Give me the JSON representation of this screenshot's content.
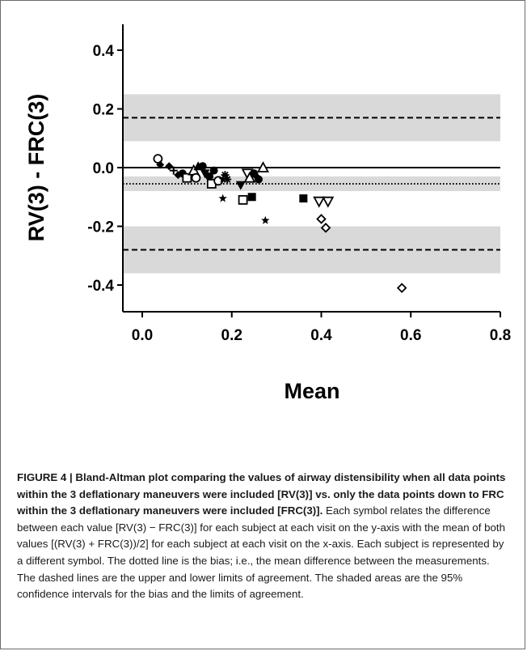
{
  "chart_data": {
    "type": "scatter",
    "title": "",
    "xlabel": "Mean",
    "ylabel": "RV(3) - FRC(3)",
    "xlim": [
      -0.1,
      0.8
    ],
    "ylim": [
      -0.5,
      0.5
    ],
    "x_ticks": [
      0.0,
      0.2,
      0.4,
      0.6,
      0.8
    ],
    "x_tick_labels": [
      "0.0",
      "0.2",
      "0.4",
      "0.6",
      "0.8"
    ],
    "y_ticks": [
      0.4,
      0.2,
      0.0,
      -0.2,
      -0.4
    ],
    "y_tick_labels": [
      "0.4",
      "0.2",
      "0.0",
      "-0.2",
      "-0.4"
    ],
    "zero_line": 0.0,
    "bias": -0.055,
    "bias_ci": [
      -0.08,
      -0.03
    ],
    "upper_limit": 0.17,
    "upper_limit_ci": [
      0.09,
      0.25
    ],
    "lower_limit": -0.28,
    "lower_limit_ci": [
      -0.36,
      -0.2
    ],
    "grid": false,
    "points": [
      {
        "x": 0.035,
        "y": 0.03,
        "marker": "circle-open"
      },
      {
        "x": 0.04,
        "y": 0.01,
        "marker": "diamond-filled"
      },
      {
        "x": 0.06,
        "y": 0.005,
        "marker": "diamond-filled"
      },
      {
        "x": 0.07,
        "y": -0.01,
        "marker": "plus"
      },
      {
        "x": 0.08,
        "y": -0.025,
        "marker": "diamond-filled"
      },
      {
        "x": 0.09,
        "y": -0.02,
        "marker": "circle-filled"
      },
      {
        "x": 0.1,
        "y": -0.035,
        "marker": "square-open"
      },
      {
        "x": 0.115,
        "y": -0.01,
        "marker": "triangle-up-open"
      },
      {
        "x": 0.12,
        "y": -0.035,
        "marker": "circle-open"
      },
      {
        "x": 0.125,
        "y": 0.005,
        "marker": "triangle-up-filled"
      },
      {
        "x": 0.135,
        "y": 0.005,
        "marker": "circle-filled"
      },
      {
        "x": 0.14,
        "y": -0.02,
        "marker": "triangle-down-filled"
      },
      {
        "x": 0.15,
        "y": -0.03,
        "marker": "circle-filled"
      },
      {
        "x": 0.155,
        "y": -0.055,
        "marker": "square-open"
      },
      {
        "x": 0.16,
        "y": -0.01,
        "marker": "circle-filled"
      },
      {
        "x": 0.17,
        "y": -0.045,
        "marker": "circle-open"
      },
      {
        "x": 0.18,
        "y": -0.04,
        "marker": "star-filled"
      },
      {
        "x": 0.185,
        "y": -0.025,
        "marker": "asterisk"
      },
      {
        "x": 0.19,
        "y": -0.04,
        "marker": "asterisk"
      },
      {
        "x": 0.18,
        "y": -0.105,
        "marker": "star-filled"
      },
      {
        "x": 0.22,
        "y": -0.06,
        "marker": "triangle-down-filled"
      },
      {
        "x": 0.225,
        "y": -0.11,
        "marker": "square-open"
      },
      {
        "x": 0.235,
        "y": -0.02,
        "marker": "triangle-down-open"
      },
      {
        "x": 0.24,
        "y": -0.035,
        "marker": "triangle-up-open"
      },
      {
        "x": 0.245,
        "y": -0.1,
        "marker": "square-filled"
      },
      {
        "x": 0.25,
        "y": -0.02,
        "marker": "circle-filled"
      },
      {
        "x": 0.255,
        "y": -0.03,
        "marker": "diamond-filled"
      },
      {
        "x": 0.26,
        "y": -0.04,
        "marker": "circle-filled"
      },
      {
        "x": 0.27,
        "y": 0.0,
        "marker": "triangle-up-open"
      },
      {
        "x": 0.275,
        "y": -0.18,
        "marker": "star-filled"
      },
      {
        "x": 0.36,
        "y": -0.105,
        "marker": "square-filled"
      },
      {
        "x": 0.395,
        "y": -0.115,
        "marker": "triangle-down-open"
      },
      {
        "x": 0.4,
        "y": -0.175,
        "marker": "diamond-open"
      },
      {
        "x": 0.41,
        "y": -0.205,
        "marker": "diamond-open"
      },
      {
        "x": 0.415,
        "y": -0.115,
        "marker": "triangle-down-open"
      },
      {
        "x": 0.58,
        "y": -0.41,
        "marker": "diamond-open"
      }
    ]
  },
  "caption": {
    "bold": "FIGURE 4 | Bland-Altman plot comparing the values of airway distensibility when all data points within the 3 deflationary maneuvers were included [RV(3)] vs. only the data points down to FRC within the 3 deflationary maneuvers were included [FRC(3)].",
    "text": " Each symbol relates the difference between each value [RV(3) − FRC(3)] for each subject at each visit on the y-axis with the mean of both values [(RV(3) + FRC(3))/2] for each subject at each visit on the x-axis. Each subject is represented by a different symbol. The dotted line is the bias; i.e., the mean difference between the measurements. The dashed lines are the upper and lower limits of agreement. The shaded areas are the 95% confidence intervals for the bias and the limits of agreement."
  },
  "colors": {
    "band": "#d9d9d9",
    "ink": "#000000",
    "frame": "#6b6b6b"
  }
}
